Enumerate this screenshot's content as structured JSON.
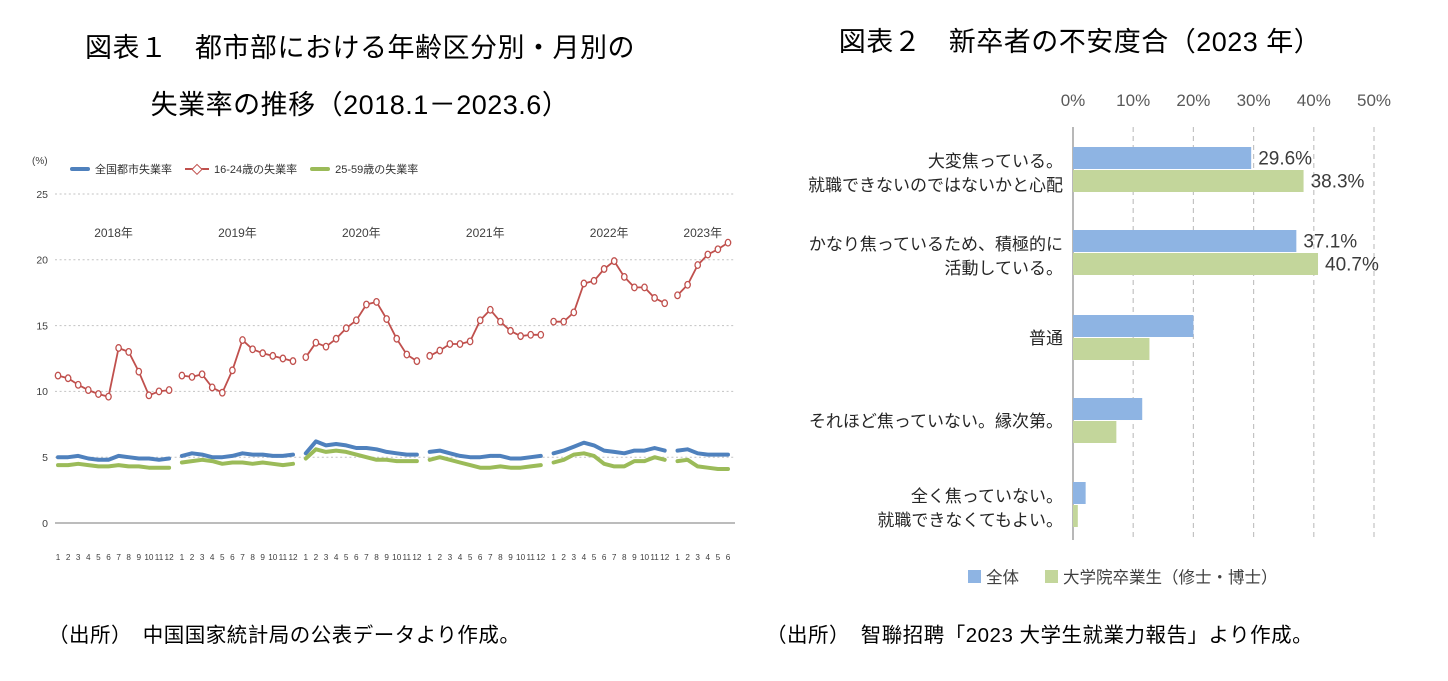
{
  "figure1": {
    "title_line1": "図表１　都市部における年齢区分別・月別の",
    "title_line2": "失業率の推移（2018.1－2023.6）",
    "source": "（出所）　中国国家統計局の公表データより作成。"
  },
  "figure2": {
    "title": "図表２　新卒者の不安度合（2023 年）",
    "source": "（出所）　智聯招聘「2023 大学生就業力報告」より作成。"
  },
  "chart_data": [
    {
      "id": "urban-unemployment-by-age-line",
      "type": "line",
      "title": "図表１　都市部における年齢区分別・月別の失業率の推移（2018.1－2023.6）",
      "unit_label": "(%)",
      "xlabel": "",
      "ylabel": "(%)",
      "ylim": [
        0,
        25
      ],
      "yticks": [
        0,
        5,
        10,
        15,
        20,
        25
      ],
      "grid": "horizontal-dashed",
      "legend_position": "top-left",
      "year_labels": [
        "2018年",
        "2019年",
        "2020年",
        "2021年",
        "2022年",
        "2023年"
      ],
      "months_per_year": [
        12,
        12,
        12,
        12,
        12,
        6
      ],
      "x_tick_note": "month numbers 1-12 under each year, 1-6 for 2023",
      "series": [
        {
          "name": "全国都市失業率",
          "color": "#4F81BD",
          "marker": "none",
          "line_width": 4,
          "values": [
            5.0,
            5.0,
            5.1,
            4.9,
            4.8,
            4.8,
            5.1,
            5.0,
            4.9,
            4.9,
            4.8,
            4.9,
            5.1,
            5.3,
            5.2,
            5.0,
            5.0,
            5.1,
            5.3,
            5.2,
            5.2,
            5.1,
            5.1,
            5.2,
            5.3,
            6.2,
            5.9,
            6.0,
            5.9,
            5.7,
            5.7,
            5.6,
            5.4,
            5.3,
            5.2,
            5.2,
            5.4,
            5.5,
            5.3,
            5.1,
            5.0,
            5.0,
            5.1,
            5.1,
            4.9,
            4.9,
            5.0,
            5.1,
            5.3,
            5.5,
            5.8,
            6.1,
            5.9,
            5.5,
            5.4,
            5.3,
            5.5,
            5.5,
            5.7,
            5.5,
            5.5,
            5.6,
            5.3,
            5.2,
            5.2,
            5.2
          ]
        },
        {
          "name": "16-24歳の失業率",
          "color": "#C0504D",
          "marker": "open-circle",
          "line_width": 1.8,
          "values": [
            11.2,
            11.0,
            10.5,
            10.1,
            9.8,
            9.6,
            13.3,
            13.0,
            11.5,
            9.7,
            10.0,
            10.1,
            11.2,
            11.1,
            11.3,
            10.3,
            9.9,
            11.6,
            13.9,
            13.2,
            12.9,
            12.7,
            12.5,
            12.3,
            12.6,
            13.7,
            13.4,
            14.0,
            14.8,
            15.4,
            16.6,
            16.8,
            15.5,
            14.0,
            12.8,
            12.3,
            12.7,
            13.1,
            13.6,
            13.6,
            13.8,
            15.4,
            16.2,
            15.3,
            14.6,
            14.2,
            14.3,
            14.3,
            15.3,
            15.3,
            16.0,
            18.2,
            18.4,
            19.3,
            19.9,
            18.7,
            17.9,
            17.9,
            17.1,
            16.7,
            17.3,
            18.1,
            19.6,
            20.4,
            20.8,
            21.3
          ]
        },
        {
          "name": "25-59歳の失業率",
          "color": "#9BBB59",
          "marker": "none",
          "line_width": 4,
          "values": [
            4.4,
            4.4,
            4.5,
            4.4,
            4.3,
            4.3,
            4.4,
            4.3,
            4.3,
            4.2,
            4.2,
            4.2,
            4.6,
            4.7,
            4.8,
            4.7,
            4.5,
            4.6,
            4.6,
            4.5,
            4.6,
            4.5,
            4.4,
            4.5,
            4.9,
            5.6,
            5.4,
            5.5,
            5.4,
            5.2,
            5.0,
            4.8,
            4.8,
            4.7,
            4.7,
            4.7,
            4.8,
            5.0,
            4.8,
            4.6,
            4.4,
            4.2,
            4.2,
            4.3,
            4.2,
            4.2,
            4.3,
            4.4,
            4.6,
            4.8,
            5.2,
            5.3,
            5.1,
            4.5,
            4.3,
            4.3,
            4.7,
            4.7,
            5.0,
            4.8,
            4.7,
            4.8,
            4.3,
            4.2,
            4.1,
            4.1
          ]
        }
      ],
      "source": "（出所）　中国国家統計局の公表データより作成。"
    },
    {
      "id": "graduate-anxiety-bar",
      "type": "bar",
      "orientation": "horizontal",
      "title": "図表２　新卒者の不安度合（2023 年）",
      "axis_position": "top",
      "xlim": [
        0,
        50
      ],
      "xticks": [
        {
          "label": "0%",
          "value": 0
        },
        {
          "label": "10%",
          "value": 10
        },
        {
          "label": "20%",
          "value": 20
        },
        {
          "label": "30%",
          "value": 30
        },
        {
          "label": "40%",
          "value": 40
        },
        {
          "label": "50%",
          "value": 50
        }
      ],
      "grid": "vertical-dashed",
      "legend_position": "bottom",
      "series": [
        {
          "name": "全体",
          "color": "#8EB4E3"
        },
        {
          "name": "大学院卒業生（修士・博士）",
          "color": "#C3D69B"
        }
      ],
      "categories": [
        {
          "label_lines": [
            "大変焦っている。",
            "就職できないのではないかと心配"
          ],
          "values": [
            29.6,
            38.3
          ],
          "value_labels": [
            "29.6%",
            "38.3%"
          ],
          "show_value_labels": true
        },
        {
          "label_lines": [
            "かなり焦っているため、積極的に",
            "活動している。"
          ],
          "values": [
            37.1,
            40.7
          ],
          "value_labels": [
            "37.1%",
            "40.7%"
          ],
          "show_value_labels": true
        },
        {
          "label_lines": [
            "普通"
          ],
          "values": [
            20.0,
            12.7
          ],
          "value_labels": [],
          "show_value_labels": false
        },
        {
          "label_lines": [
            "それほど焦っていない。縁次第。"
          ],
          "values": [
            11.5,
            7.2
          ],
          "value_labels": [],
          "show_value_labels": false
        },
        {
          "label_lines": [
            "全く焦っていない。",
            "就職できなくてもよい。"
          ],
          "values": [
            2.1,
            0.8
          ],
          "value_labels": [],
          "show_value_labels": false
        }
      ],
      "source": "（出所）　智聯招聘「2023 大学生就業力報告」より作成。"
    }
  ],
  "colors": {
    "grid": "#C3C3C3",
    "axis": "#A6A6A6",
    "tick_text": "#595959",
    "small_text": "#404040"
  }
}
